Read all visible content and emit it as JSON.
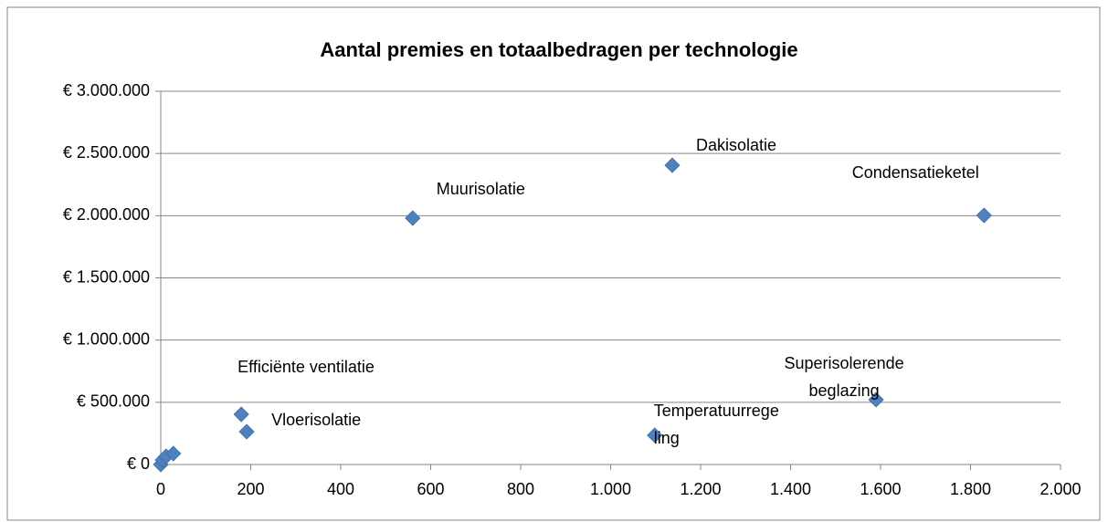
{
  "chart_data": {
    "type": "scatter",
    "title": "Aantal premies en totaalbedragen per technologie",
    "color": "#4f81bd",
    "grid": true,
    "x": [
      560,
      1137,
      1830,
      179,
      191,
      1098,
      1590,
      0,
      4,
      12,
      28
    ],
    "values": [
      1980000,
      2405000,
      2002000,
      403000,
      264000,
      235000,
      521000,
      0,
      37000,
      66000,
      88000
    ],
    "point_labels": [
      "Muurisolatie",
      "Dakisolatie",
      "Condensatieketel",
      "Efficiënte ventilatie",
      "Vloerisolatie",
      "Temperatuurregeling",
      "Superisolerende beglazing",
      null,
      null,
      null,
      null
    ],
    "xlim": [
      0,
      2000
    ],
    "xticks": [
      0,
      200,
      400,
      600,
      800,
      {
        "value": 1000,
        "label": "1.000"
      },
      {
        "value": 1200,
        "label": "1.200"
      },
      {
        "value": 1400,
        "label": "1.400"
      },
      {
        "value": 1600,
        "label": "1.600"
      },
      {
        "value": 1800,
        "label": "1.800"
      },
      {
        "value": 2000,
        "label": "2.000"
      }
    ],
    "ylim": [
      0,
      3000000
    ],
    "yticks": [
      {
        "value": 0,
        "label": "€ 0"
      },
      {
        "value": 500000,
        "label": "€ 500.000"
      },
      {
        "value": 1000000,
        "label": "€ 1.000.000"
      },
      {
        "value": 1500000,
        "label": "€ 1.500.000"
      },
      {
        "value": 2000000,
        "label": "€ 2.000.000"
      },
      {
        "value": 2500000,
        "label": "€ 2.500.000"
      },
      {
        "value": 3000000,
        "label": "€ 3.000.000"
      }
    ]
  }
}
